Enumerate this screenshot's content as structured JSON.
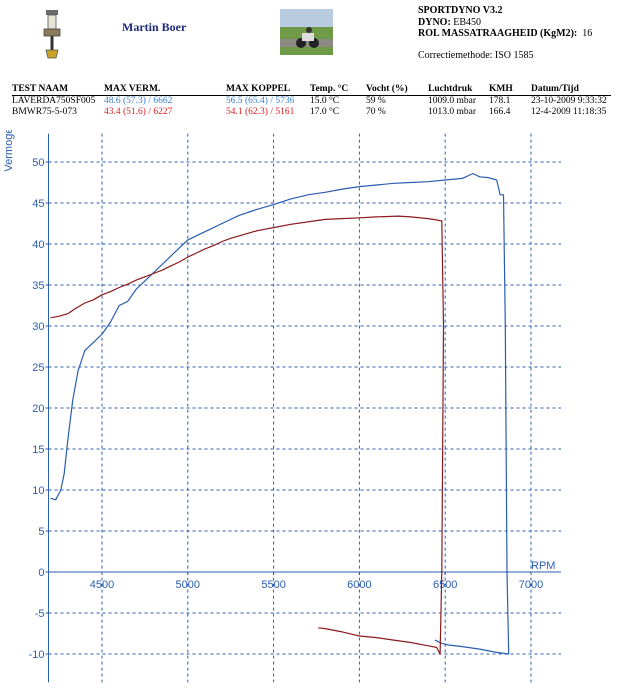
{
  "header": {
    "author": "Martin Boer",
    "app_title": "SPORTDYNO V3.2",
    "dyno_label": "DYNO:",
    "dyno_value": "EB450",
    "inertia_label": "ROL MASSATRAAGHEID (KgM2):",
    "inertia_value": "16",
    "correction": "Correctiemethode: ISO 1585",
    "icon": "spark-plug-icon",
    "photo": "motorcycle-photo"
  },
  "table": {
    "headers": [
      "TEST NAAM",
      "MAX VERM.",
      "MAX KOPPEL",
      "Temp. °C",
      "Vocht (%)",
      "Luchtdruk",
      "KMH",
      "Datum/Tijd"
    ],
    "rows": [
      {
        "name": "LAVERDA750SF005",
        "verm": "48.6 (57.3) / 6662",
        "koppel": "56.5 (65.4) / 5736",
        "temp": "15.0 °C",
        "vocht": "59 %",
        "druk": "1009.0 mbar",
        "kmh": "178.1",
        "datum": "23-10-2009 9:33:32",
        "color": "#3a7fd0"
      },
      {
        "name": "BMWR75-5-073",
        "verm": "43.4 (51.6) / 6227",
        "koppel": "54.1 (62.3) / 5161",
        "temp": "17.0 °C",
        "vocht": "70 %",
        "druk": "1013.0 mbar",
        "kmh": "166.4",
        "datum": "12-4-2009 11:18:35",
        "color": "#d92020"
      }
    ]
  },
  "chart_data": {
    "type": "line",
    "ylabel": "Vermogen",
    "xlabel": "RPM",
    "xlim": [
      4200,
      7000
    ],
    "ylim": [
      -12,
      52
    ],
    "x_ticks": [
      4500,
      5000,
      5500,
      6000,
      6500,
      7000
    ],
    "y_ticks": [
      -10,
      -5,
      0,
      5,
      10,
      15,
      20,
      25,
      30,
      35,
      40,
      45,
      50
    ],
    "grid": true,
    "axis_color": "#2a5db0",
    "series": [
      {
        "name": "LAVERDA750SF005",
        "color": "#2a5db0",
        "points": [
          [
            4200,
            9
          ],
          [
            4230,
            8.8
          ],
          [
            4260,
            10
          ],
          [
            4280,
            12
          ],
          [
            4300,
            16
          ],
          [
            4330,
            21
          ],
          [
            4360,
            24.5
          ],
          [
            4400,
            27
          ],
          [
            4450,
            28
          ],
          [
            4500,
            29
          ],
          [
            4550,
            30.5
          ],
          [
            4600,
            32.5
          ],
          [
            4650,
            33
          ],
          [
            4700,
            34.5
          ],
          [
            4750,
            35.5
          ],
          [
            4800,
            36.5
          ],
          [
            4850,
            37.5
          ],
          [
            4900,
            38.5
          ],
          [
            4950,
            39.5
          ],
          [
            5000,
            40.5
          ],
          [
            5100,
            41.5
          ],
          [
            5200,
            42.5
          ],
          [
            5300,
            43.5
          ],
          [
            5400,
            44.2
          ],
          [
            5500,
            44.8
          ],
          [
            5600,
            45.5
          ],
          [
            5700,
            46
          ],
          [
            5800,
            46.3
          ],
          [
            5900,
            46.7
          ],
          [
            6000,
            47
          ],
          [
            6100,
            47.2
          ],
          [
            6200,
            47.4
          ],
          [
            6300,
            47.5
          ],
          [
            6400,
            47.6
          ],
          [
            6500,
            47.8
          ],
          [
            6600,
            48
          ],
          [
            6662,
            48.6
          ],
          [
            6700,
            48.2
          ],
          [
            6750,
            48.1
          ],
          [
            6800,
            47.8
          ],
          [
            6820,
            46
          ],
          [
            6840,
            46
          ],
          [
            6850,
            30
          ],
          [
            6860,
            0
          ],
          [
            6870,
            -10
          ],
          [
            6800,
            -9.8
          ],
          [
            6700,
            -9.4
          ],
          [
            6600,
            -9.1
          ],
          [
            6520,
            -8.9
          ],
          [
            6480,
            -8.7
          ],
          [
            6460,
            -8.5
          ],
          [
            6440,
            -8.3
          ]
        ]
      },
      {
        "name": "BMWR75-5-073",
        "color": "#8b1a1a",
        "points": [
          [
            4200,
            31
          ],
          [
            4250,
            31.2
          ],
          [
            4300,
            31.5
          ],
          [
            4350,
            32.2
          ],
          [
            4400,
            32.8
          ],
          [
            4450,
            33.2
          ],
          [
            4500,
            33.8
          ],
          [
            4550,
            34.2
          ],
          [
            4600,
            34.7
          ],
          [
            4650,
            35.1
          ],
          [
            4700,
            35.6
          ],
          [
            4750,
            36
          ],
          [
            4800,
            36.4
          ],
          [
            4850,
            36.8
          ],
          [
            4900,
            37.3
          ],
          [
            4950,
            37.8
          ],
          [
            5000,
            38.4
          ],
          [
            5050,
            38.9
          ],
          [
            5100,
            39.4
          ],
          [
            5150,
            39.8
          ],
          [
            5200,
            40.3
          ],
          [
            5250,
            40.7
          ],
          [
            5300,
            41
          ],
          [
            5350,
            41.3
          ],
          [
            5400,
            41.6
          ],
          [
            5450,
            41.8
          ],
          [
            5500,
            42
          ],
          [
            5600,
            42.4
          ],
          [
            5700,
            42.7
          ],
          [
            5800,
            43
          ],
          [
            5900,
            43.1
          ],
          [
            6000,
            43.2
          ],
          [
            6100,
            43.3
          ],
          [
            6227,
            43.4
          ],
          [
            6300,
            43.3
          ],
          [
            6400,
            43.1
          ],
          [
            6430,
            43
          ],
          [
            6480,
            42.8
          ],
          [
            6490,
            30
          ],
          [
            6480,
            0
          ],
          [
            6470,
            -10
          ],
          [
            6450,
            -9.2
          ],
          [
            6400,
            -9
          ],
          [
            6300,
            -8.6
          ],
          [
            6200,
            -8.3
          ],
          [
            6100,
            -8
          ],
          [
            6000,
            -7.8
          ],
          [
            5900,
            -7.3
          ],
          [
            5800,
            -6.9
          ],
          [
            5760,
            -6.8
          ]
        ]
      }
    ]
  }
}
